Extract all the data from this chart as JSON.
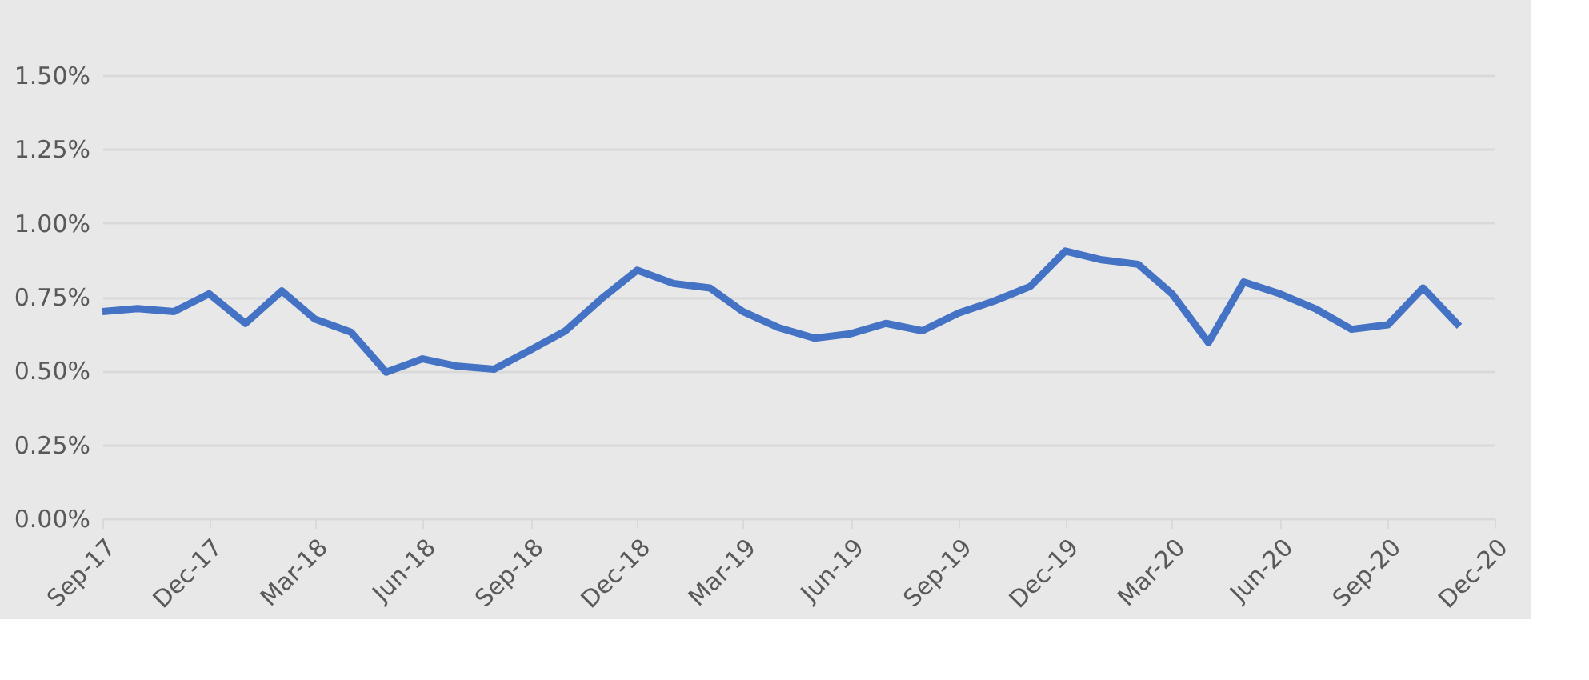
{
  "chart_data": {
    "type": "line",
    "x": [
      "2017-09",
      "2017-10",
      "2017-11",
      "2017-12",
      "2018-01",
      "2018-02",
      "2018-03",
      "2018-04",
      "2018-05",
      "2018-06",
      "2018-07",
      "2018-08",
      "2018-09",
      "2018-10",
      "2018-11",
      "2018-12",
      "2019-01",
      "2019-02",
      "2019-03",
      "2019-04",
      "2019-05",
      "2019-06",
      "2019-07",
      "2019-08",
      "2019-09",
      "2019-10",
      "2019-11",
      "2019-12",
      "2020-01",
      "2020-02",
      "2020-03",
      "2020-04",
      "2020-05",
      "2020-06",
      "2020-07",
      "2020-08",
      "2020-09",
      "2020-10",
      "2020-11"
    ],
    "series": [
      {
        "color": "#4472c4",
        "values": [
          0.7,
          0.71,
          0.7,
          0.76,
          0.66,
          0.77,
          0.675,
          0.63,
          0.495,
          0.54,
          0.515,
          0.505,
          0.57,
          0.635,
          0.745,
          0.84,
          0.795,
          0.78,
          0.7,
          0.645,
          0.61,
          0.625,
          0.66,
          0.635,
          0.695,
          0.735,
          0.785,
          0.905,
          0.875,
          0.86,
          0.76,
          0.595,
          0.8,
          0.76,
          0.71,
          0.64,
          0.655,
          0.78,
          0.65
        ]
      }
    ],
    "ylim": [
      0,
      1.5
    ],
    "yticks": [
      {
        "value": 0,
        "label": "0.00%"
      },
      {
        "value": 0.25,
        "label": "0.25%"
      },
      {
        "value": 0.5,
        "label": "0.50%"
      },
      {
        "value": 0.75,
        "label": "0.75%"
      },
      {
        "value": 1.0,
        "label": "1.00%"
      },
      {
        "value": 1.25,
        "label": "1.25%"
      },
      {
        "value": 1.5,
        "label": "1.50%"
      }
    ],
    "xlim": [
      "2017-09",
      "2020-12"
    ],
    "xticks": [
      {
        "value": "2017-09",
        "label": "Sep-17"
      },
      {
        "value": "2017-12",
        "label": "Dec-17"
      },
      {
        "value": "2018-03",
        "label": "Mar-18"
      },
      {
        "value": "2018-06",
        "label": "Jun-18"
      },
      {
        "value": "2018-09",
        "label": "Sep-18"
      },
      {
        "value": "2018-12",
        "label": "Dec-18"
      },
      {
        "value": "2019-03",
        "label": "Mar-19"
      },
      {
        "value": "2019-06",
        "label": "Jun-19"
      },
      {
        "value": "2019-09",
        "label": "Sep-19"
      },
      {
        "value": "2019-12",
        "label": "Dec-19"
      },
      {
        "value": "2020-03",
        "label": "Mar-20"
      },
      {
        "value": "2020-06",
        "label": "Jun-20"
      },
      {
        "value": "2020-09",
        "label": "Sep-20"
      },
      {
        "value": "2020-12",
        "label": "Dec-20"
      }
    ],
    "grid": "y",
    "marker": "none",
    "line_style": "solid"
  }
}
